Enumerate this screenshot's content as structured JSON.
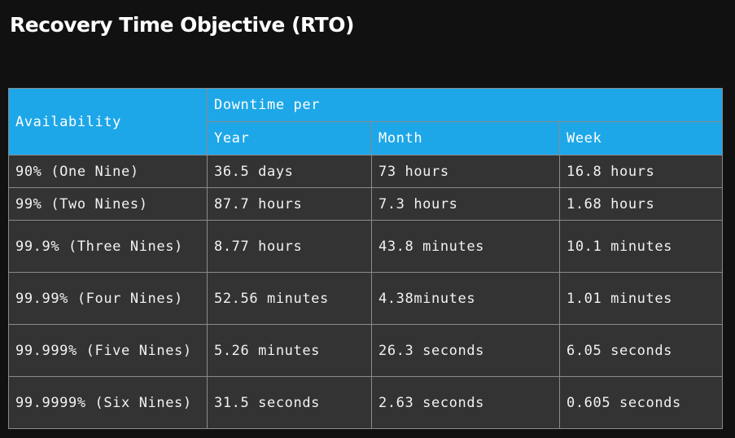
{
  "title": "Recovery Time Objective (RTO)",
  "table": {
    "header": {
      "availability": "Availability",
      "downtime_per": "Downtime per",
      "year": "Year",
      "month": "Month",
      "week": "Week"
    },
    "rows": [
      {
        "availability": "90% (One Nine)",
        "year": "36.5 days",
        "month": "73 hours",
        "week": "16.8 hours"
      },
      {
        "availability": "99% (Two Nines)",
        "year": "87.7 hours",
        "month": "7.3 hours",
        "week": "1.68 hours"
      },
      {
        "availability": "99.9% (Three Nines)",
        "year": "8.77 hours",
        "month": "43.8 minutes",
        "week": "10.1 minutes"
      },
      {
        "availability": "99.99% (Four Nines)",
        "year": "52.56 minutes",
        "month": "4.38minutes",
        "week": "1.01 minutes"
      },
      {
        "availability": "99.999% (Five Nines)",
        "year": "5.26 minutes",
        "month": "26.3 seconds",
        "week": "6.05 seconds"
      },
      {
        "availability": "99.9999% (Six Nines)",
        "year": "31.5 seconds",
        "month": "2.63 seconds",
        "week": "0.605 seconds"
      }
    ]
  },
  "colors": {
    "background": "#111111",
    "header": "#1ea7e8",
    "cell": "#333333",
    "border": "#8a8a8a",
    "text": "#ffffff"
  }
}
